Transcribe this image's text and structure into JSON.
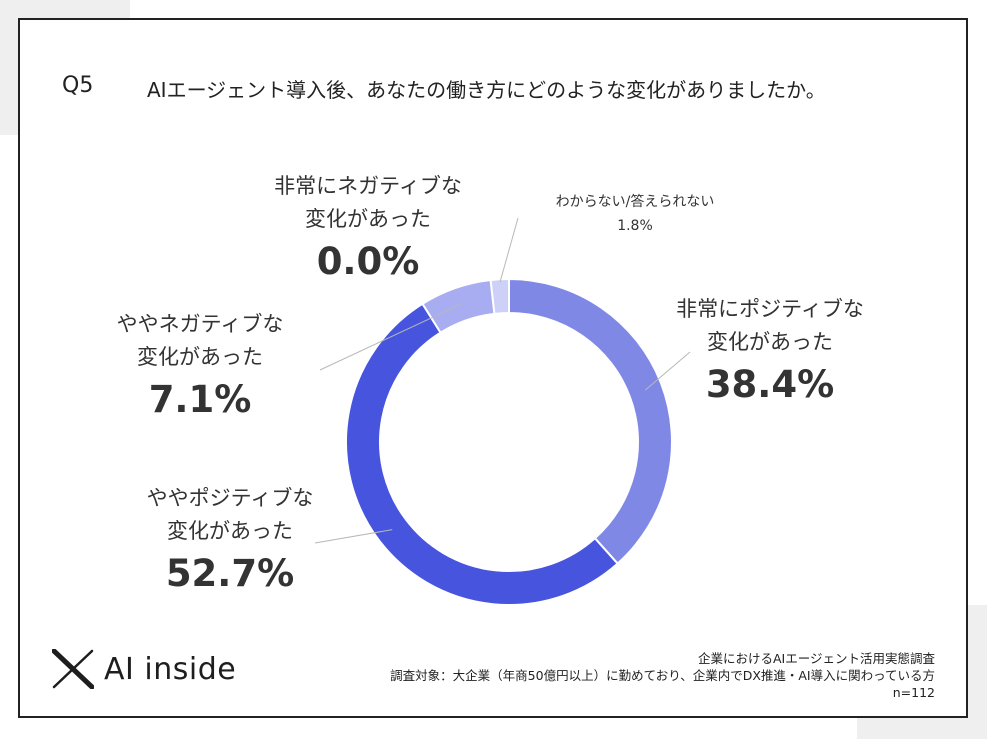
{
  "question": {
    "number": "Q5",
    "text": "AIエージェント導入後、あなたの働き方にどのような変化がありましたか。"
  },
  "chart_data": {
    "type": "pie",
    "donut": true,
    "title": "",
    "slices": [
      {
        "name": "非常にポジティブな変化があった",
        "line1": "非常にポジティブな",
        "line2": "変化があった",
        "value": 38.4,
        "label": "38.4%",
        "color": "#8088e6"
      },
      {
        "name": "ややポジティブな変化があった",
        "line1": "ややポジティブな",
        "line2": "変化があった",
        "value": 52.7,
        "label": "52.7%",
        "color": "#4654de"
      },
      {
        "name": "ややネガティブな変化があった",
        "line1": "ややネガティブな",
        "line2": "変化があった",
        "value": 7.1,
        "label": "7.1%",
        "color": "#a7adf0"
      },
      {
        "name": "非常にネガティブな変化があった",
        "line1": "非常にネガティブな",
        "line2": "変化があった",
        "value": 0.0,
        "label": "0.0%",
        "color": "#c3c7f5"
      },
      {
        "name": "わからない/答えられない",
        "line1": "わからない/答えられない",
        "line2": "",
        "value": 1.8,
        "label": "1.8%",
        "color": "#cdd0f7"
      }
    ]
  },
  "brand": {
    "name": "AI inside"
  },
  "notes": {
    "survey": "企業におけるAIエージェント活用実態調査",
    "target": "調査対象：大企業（年商50億円以上）に勤めており、企業内でDX推進・AI導入に関わっている方",
    "n": "n=112"
  }
}
